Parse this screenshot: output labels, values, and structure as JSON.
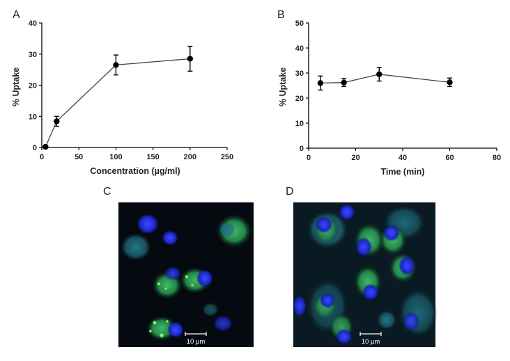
{
  "panels": {
    "A": "A",
    "B": "B",
    "C": "C",
    "D": "D"
  },
  "chart_data": [
    {
      "panel": "A",
      "type": "line",
      "ylabel": "% Uptake",
      "xlabel": "Concentration (µg/ml)",
      "xlim": [
        0,
        250
      ],
      "ylim": [
        0,
        40
      ],
      "xticks": [
        0,
        50,
        100,
        150,
        200,
        250
      ],
      "yticks": [
        0,
        10,
        20,
        30,
        40
      ],
      "grid": false,
      "series": [
        {
          "points": [
            {
              "x": 5,
              "y": 0.2,
              "err": 0.3
            },
            {
              "x": 20,
              "y": 8.4,
              "err": 1.6
            },
            {
              "x": 100,
              "y": 26.5,
              "err": 3.2
            },
            {
              "x": 200,
              "y": 28.5,
              "err": 4.0
            }
          ]
        }
      ]
    },
    {
      "panel": "B",
      "type": "line",
      "ylabel": "% Uptake",
      "xlabel": "Time (min)",
      "xlim": [
        0,
        80
      ],
      "ylim": [
        0,
        50
      ],
      "xticks": [
        0,
        20,
        40,
        60,
        80
      ],
      "yticks": [
        0,
        10,
        20,
        30,
        40,
        50
      ],
      "grid": false,
      "series": [
        {
          "points": [
            {
              "x": 5,
              "y": 26.0,
              "err": 2.8
            },
            {
              "x": 15,
              "y": 26.2,
              "err": 1.6
            },
            {
              "x": 30,
              "y": 29.5,
              "err": 2.7
            },
            {
              "x": 60,
              "y": 26.3,
              "err": 1.7
            }
          ]
        }
      ]
    }
  ],
  "micrographs": {
    "C": {
      "scale_bar": "10 µm"
    },
    "D": {
      "scale_bar": "10 µm"
    }
  }
}
